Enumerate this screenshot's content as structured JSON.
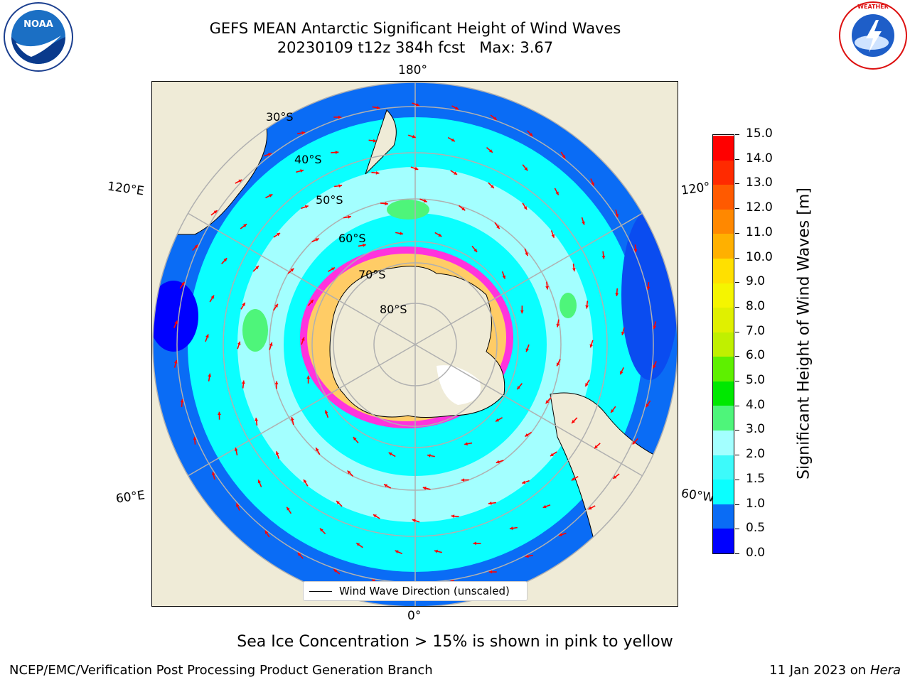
{
  "title": {
    "line1": "GEFS MEAN Antarctic Significant Height of Wind Waves",
    "line2": "20230109 t12z 384h fcst   Max: 3.67"
  },
  "logos": {
    "left": "NOAA",
    "right": "National Weather Service"
  },
  "map": {
    "lon_labels": {
      "top": "180°",
      "bottom": "0°",
      "left_upper": "120°E",
      "left_lower": "60°E",
      "right_upper": "120°",
      "right_lower": "60°W"
    },
    "lat_labels": [
      "30°S",
      "40°S",
      "50°S",
      "60°S",
      "70°S",
      "80°S"
    ],
    "legend": "Wind Wave Direction (unscaled)",
    "arrow_color": "#ff0000"
  },
  "colorbar": {
    "label": "Significant Height of Wind Waves [m]",
    "ticks": [
      "0.0",
      "0.5",
      "1.0",
      "1.5",
      "2.0",
      "3.0",
      "4.0",
      "5.0",
      "6.0",
      "7.0",
      "8.0",
      "9.0",
      "10.0",
      "11.0",
      "12.0",
      "13.0",
      "14.0",
      "15.0"
    ],
    "colors": [
      "#0000ff",
      "#0a6cf5",
      "#0affff",
      "#3dfafa",
      "#a3ffff",
      "#4ef57a",
      "#00e800",
      "#5ef000",
      "#c0f000",
      "#e0f000",
      "#f5f500",
      "#ffe000",
      "#ffb000",
      "#ff8800",
      "#ff5a00",
      "#ff2a00",
      "#ff0000"
    ]
  },
  "sea_ice_note": "Sea Ice Concentration > 15% is shown in pink to yellow",
  "footer": {
    "left": "NCEP/EMC/Verification Post Processing Product Generation Branch",
    "right_prefix": "11 Jan 2023 on ",
    "right_machine": "Hera"
  }
}
